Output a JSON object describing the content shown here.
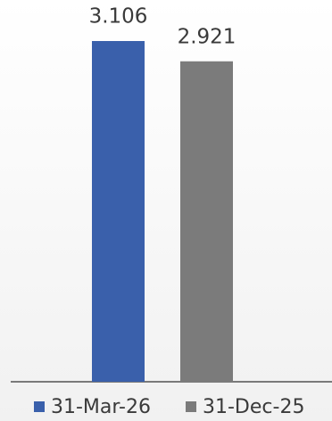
{
  "chart_data": {
    "type": "bar",
    "categories": [
      null
    ],
    "series": [
      {
        "name": "31-Mar-26",
        "color": "#3a60ab",
        "values": [
          3.106
        ]
      },
      {
        "name": "31-Dec-25",
        "color": "#7b7b7b",
        "values": [
          2.921
        ]
      }
    ]
  }
}
